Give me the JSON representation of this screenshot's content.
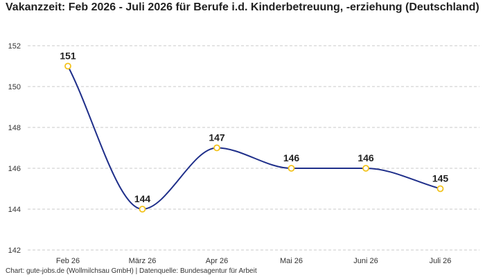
{
  "chart_data": {
    "type": "line",
    "title": "Vakanzzeit: Feb 2026 - Juli 2026 für Berufe i.d. Kinderbetreuung, -erziehung (Deutschland)",
    "categories": [
      "Feb 26",
      "März 26",
      "Apr 26",
      "Mai 26",
      "Juni 26",
      "Juli 26"
    ],
    "values": [
      151,
      144,
      147,
      146,
      146,
      145
    ],
    "ylim": [
      142,
      152
    ],
    "yticks": [
      142,
      144,
      146,
      148,
      150,
      152
    ],
    "grid": true,
    "line_color": "#1f2f8a",
    "marker_color": "#f2c21b"
  },
  "footer": "Chart: gute-jobs.de (Wollmilchsau GmbH) | Datenquelle: Bundesagentur für Arbeit"
}
